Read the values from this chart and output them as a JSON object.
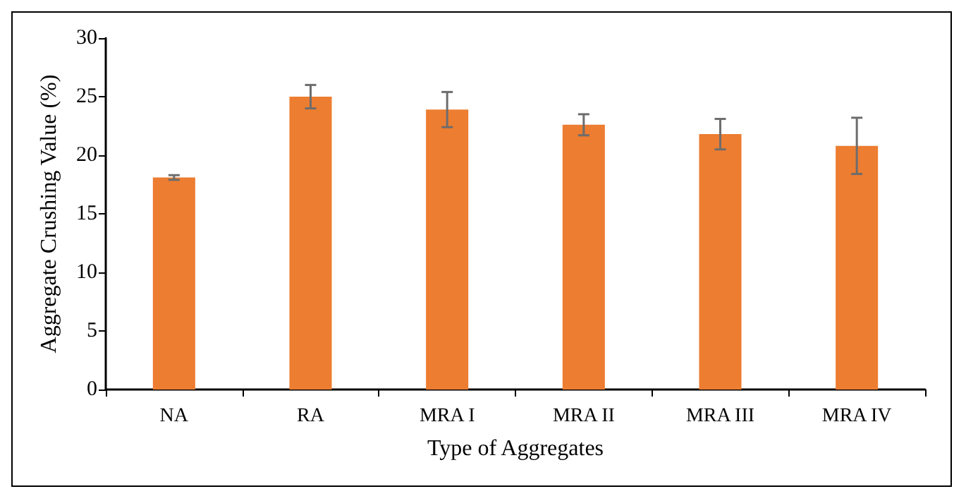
{
  "chart_data": {
    "type": "bar",
    "xlabel": "Type of Aggregates",
    "ylabel": "Aggregate Crushing Value (%)",
    "categories": [
      "NA",
      "RA",
      "MRA I",
      "MRA II",
      "MRA III",
      "MRA IV"
    ],
    "values": [
      18.1,
      25.0,
      23.9,
      22.6,
      21.8,
      20.8
    ],
    "errors": [
      0.2,
      1.0,
      1.5,
      0.9,
      1.3,
      2.4
    ],
    "color": "#ed7d31",
    "ylim": [
      0,
      30
    ],
    "yticks": [
      0,
      5,
      10,
      15,
      20,
      25,
      30
    ],
    "grid": false
  }
}
